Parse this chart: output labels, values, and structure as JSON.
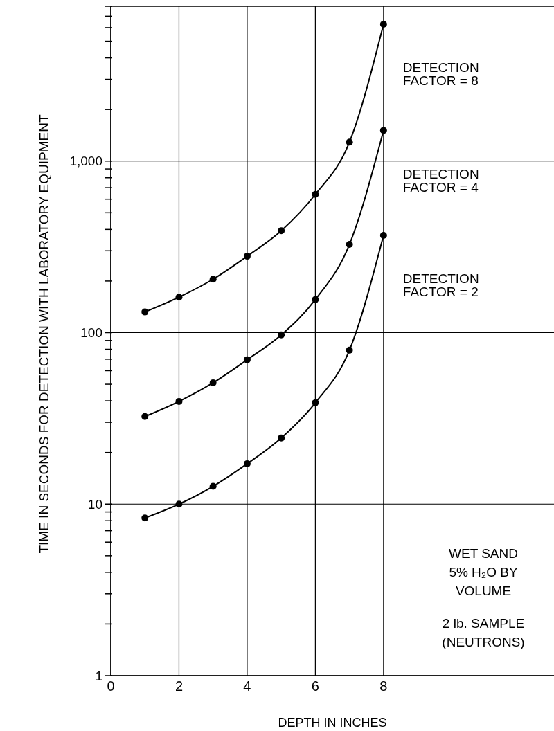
{
  "chart_data": {
    "type": "line",
    "xlabel": "DEPTH IN INCHES",
    "ylabel": "TIME IN SECONDS FOR DETECTION WITH LABORATORY EQUIPMENT",
    "x": [
      1,
      2,
      3,
      4,
      5,
      6,
      7,
      8
    ],
    "series": [
      {
        "name": "DETECTION FACTOR = 8",
        "color": "#000000",
        "values": [
          132,
          161,
          205,
          279,
          393,
          640,
          1290,
          6280
        ]
      },
      {
        "name": "DETECTION FACTOR = 4",
        "color": "#000000",
        "values": [
          32.4,
          39.7,
          51,
          69.5,
          97,
          156,
          327,
          1510
        ]
      },
      {
        "name": "DETECTION FACTOR = 2",
        "color": "#000000",
        "values": [
          8.3,
          10,
          12.7,
          17.2,
          24.3,
          39,
          79,
          369
        ]
      }
    ],
    "xlim": [
      0,
      13
    ],
    "xticks": [
      0,
      2,
      4,
      6,
      8
    ],
    "ylim": [
      1,
      8000
    ],
    "log": true,
    "yticks": [
      1,
      {
        "value": 2,
        "label": null
      },
      {
        "value": 3,
        "label": null
      },
      {
        "value": 4,
        "label": null
      },
      {
        "value": 5,
        "label": null
      },
      {
        "value": 6,
        "label": null
      },
      {
        "value": 7,
        "label": null
      },
      {
        "value": 8,
        "label": null
      },
      {
        "value": 9,
        "label": null
      },
      10,
      {
        "value": 20,
        "label": null
      },
      {
        "value": 30,
        "label": null
      },
      {
        "value": 40,
        "label": null
      },
      {
        "value": 50,
        "label": null
      },
      {
        "value": 60,
        "label": null
      },
      {
        "value": 70,
        "label": null
      },
      {
        "value": 80,
        "label": null
      },
      {
        "value": 90,
        "label": null
      },
      100,
      {
        "value": 200,
        "label": null
      },
      {
        "value": 300,
        "label": null
      },
      {
        "value": 400,
        "label": null
      },
      {
        "value": 500,
        "label": null
      },
      {
        "value": 600,
        "label": null
      },
      {
        "value": 700,
        "label": null
      },
      {
        "value": 800,
        "label": null
      },
      {
        "value": 900,
        "label": null
      },
      {
        "value": 1000,
        "label": "1,000"
      },
      {
        "value": 2000,
        "label": null
      },
      {
        "value": 3000,
        "label": null
      },
      {
        "value": 4000,
        "label": null
      },
      {
        "value": 5000,
        "label": null
      },
      {
        "value": 6000,
        "label": null
      },
      {
        "value": 7000,
        "label": null
      },
      {
        "value": 8000,
        "label": null
      }
    ],
    "grid": true,
    "marker": "circle",
    "line_style": "solid",
    "legend": false,
    "annotations": [
      "WET SAND",
      "5% H₂O BY",
      "VOLUME",
      "2 lb. SAMPLE",
      "(NEUTRONS)"
    ]
  }
}
